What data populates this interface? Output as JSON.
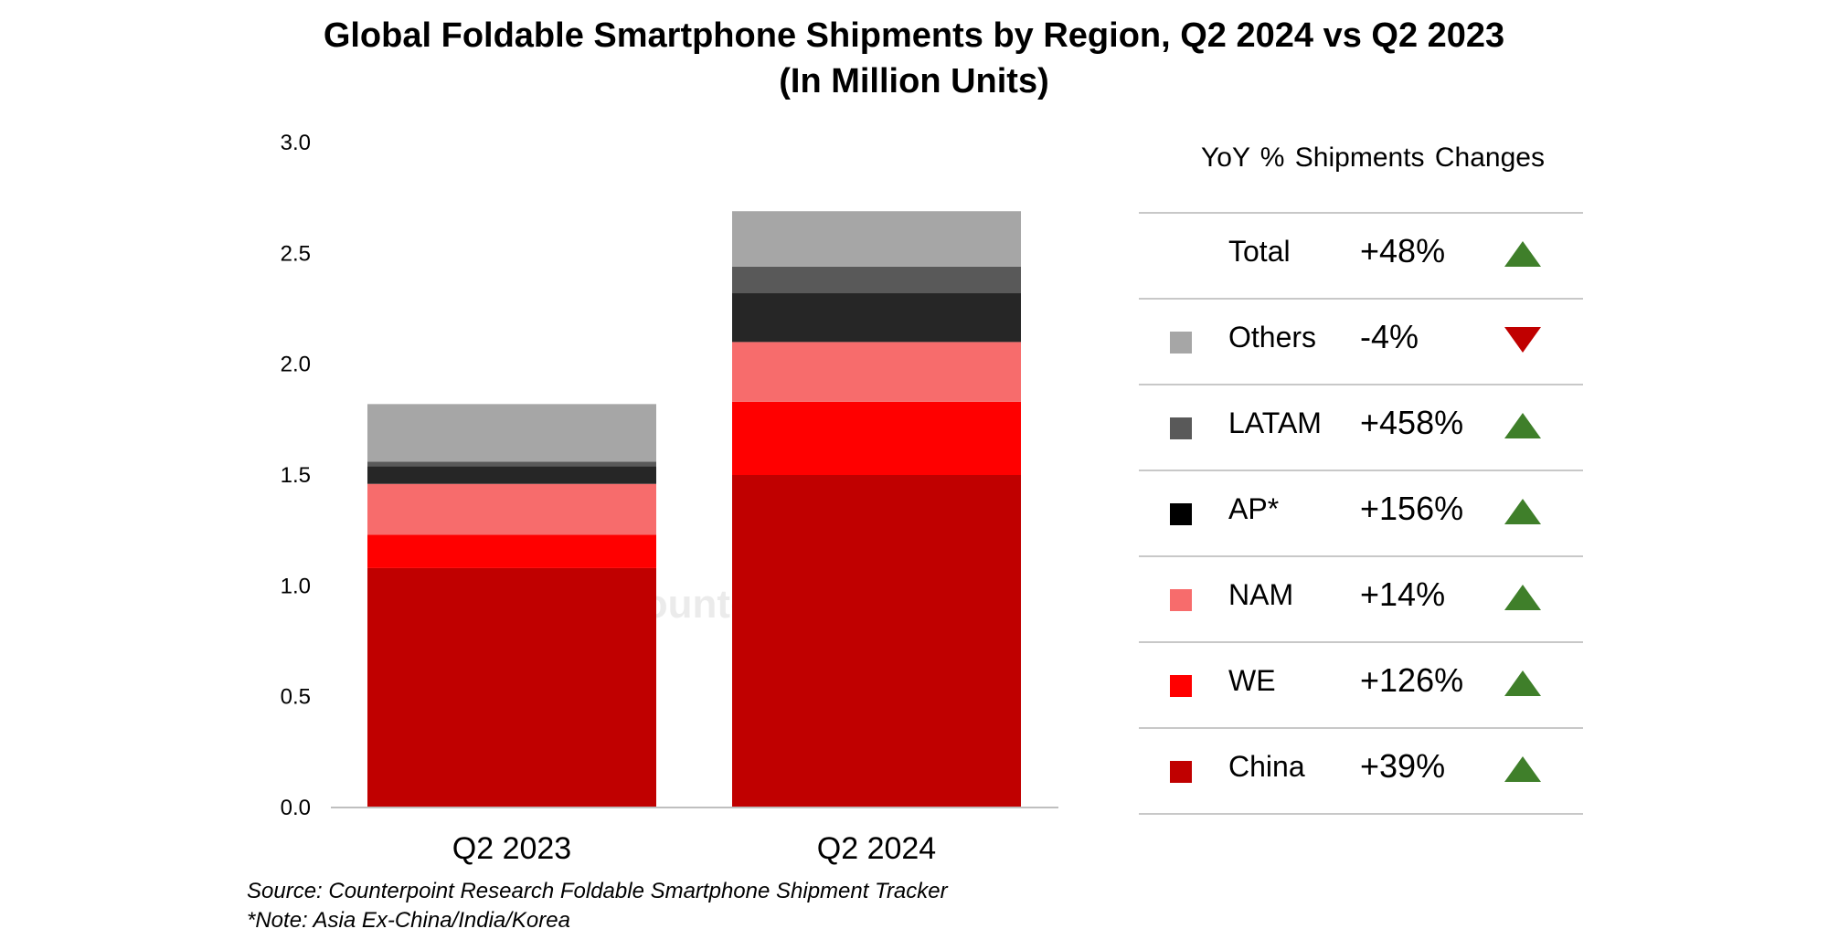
{
  "title_line1": "Global Foldable Smartphone Shipments by Region, Q2 2024 vs Q2 2023",
  "title_line2": "(In Million Units)",
  "watermark": "Counterpoint",
  "chart_data": {
    "type": "bar",
    "stacked": true,
    "categories": [
      "Q2 2023",
      "Q2 2024"
    ],
    "ylim": [
      0,
      3.0
    ],
    "yticks": [
      "0.0",
      "0.5",
      "1.0",
      "1.5",
      "2.0",
      "2.5",
      "3.0"
    ],
    "grid": false,
    "series": [
      {
        "name": "China",
        "color": "#c00000",
        "values": [
          1.08,
          1.5
        ]
      },
      {
        "name": "WE",
        "color": "#ff0000",
        "values": [
          0.15,
          0.33
        ]
      },
      {
        "name": "NAM",
        "color": "#f76c6c",
        "values": [
          0.23,
          0.27
        ]
      },
      {
        "name": "AP*",
        "color": "#262626",
        "values": [
          0.08,
          0.22
        ]
      },
      {
        "name": "LATAM",
        "color": "#595959",
        "values": [
          0.02,
          0.12
        ]
      },
      {
        "name": "Others",
        "color": "#a6a6a6",
        "values": [
          0.26,
          0.25
        ]
      }
    ]
  },
  "yoy": {
    "header": "YoY % Shipments Changes",
    "rows": [
      {
        "region": "Total",
        "change": "+48%",
        "direction": "up",
        "color": ""
      },
      {
        "region": "Others",
        "change": "-4%",
        "direction": "down",
        "color": "#a6a6a6"
      },
      {
        "region": "LATAM",
        "change": "+458%",
        "direction": "up",
        "color": "#595959"
      },
      {
        "region": "AP*",
        "change": "+156%",
        "direction": "up",
        "color": "#000000"
      },
      {
        "region": "NAM",
        "change": "+14%",
        "direction": "up",
        "color": "#f76c6c"
      },
      {
        "region": "WE",
        "change": "+126%",
        "direction": "up",
        "color": "#ff0000"
      },
      {
        "region": "China",
        "change": "+39%",
        "direction": "up",
        "color": "#c00000"
      }
    ]
  },
  "source": "Source: Counterpoint Research Foldable Smartphone Shipment Tracker",
  "note": "*Note: Asia Ex-China/India/Korea"
}
